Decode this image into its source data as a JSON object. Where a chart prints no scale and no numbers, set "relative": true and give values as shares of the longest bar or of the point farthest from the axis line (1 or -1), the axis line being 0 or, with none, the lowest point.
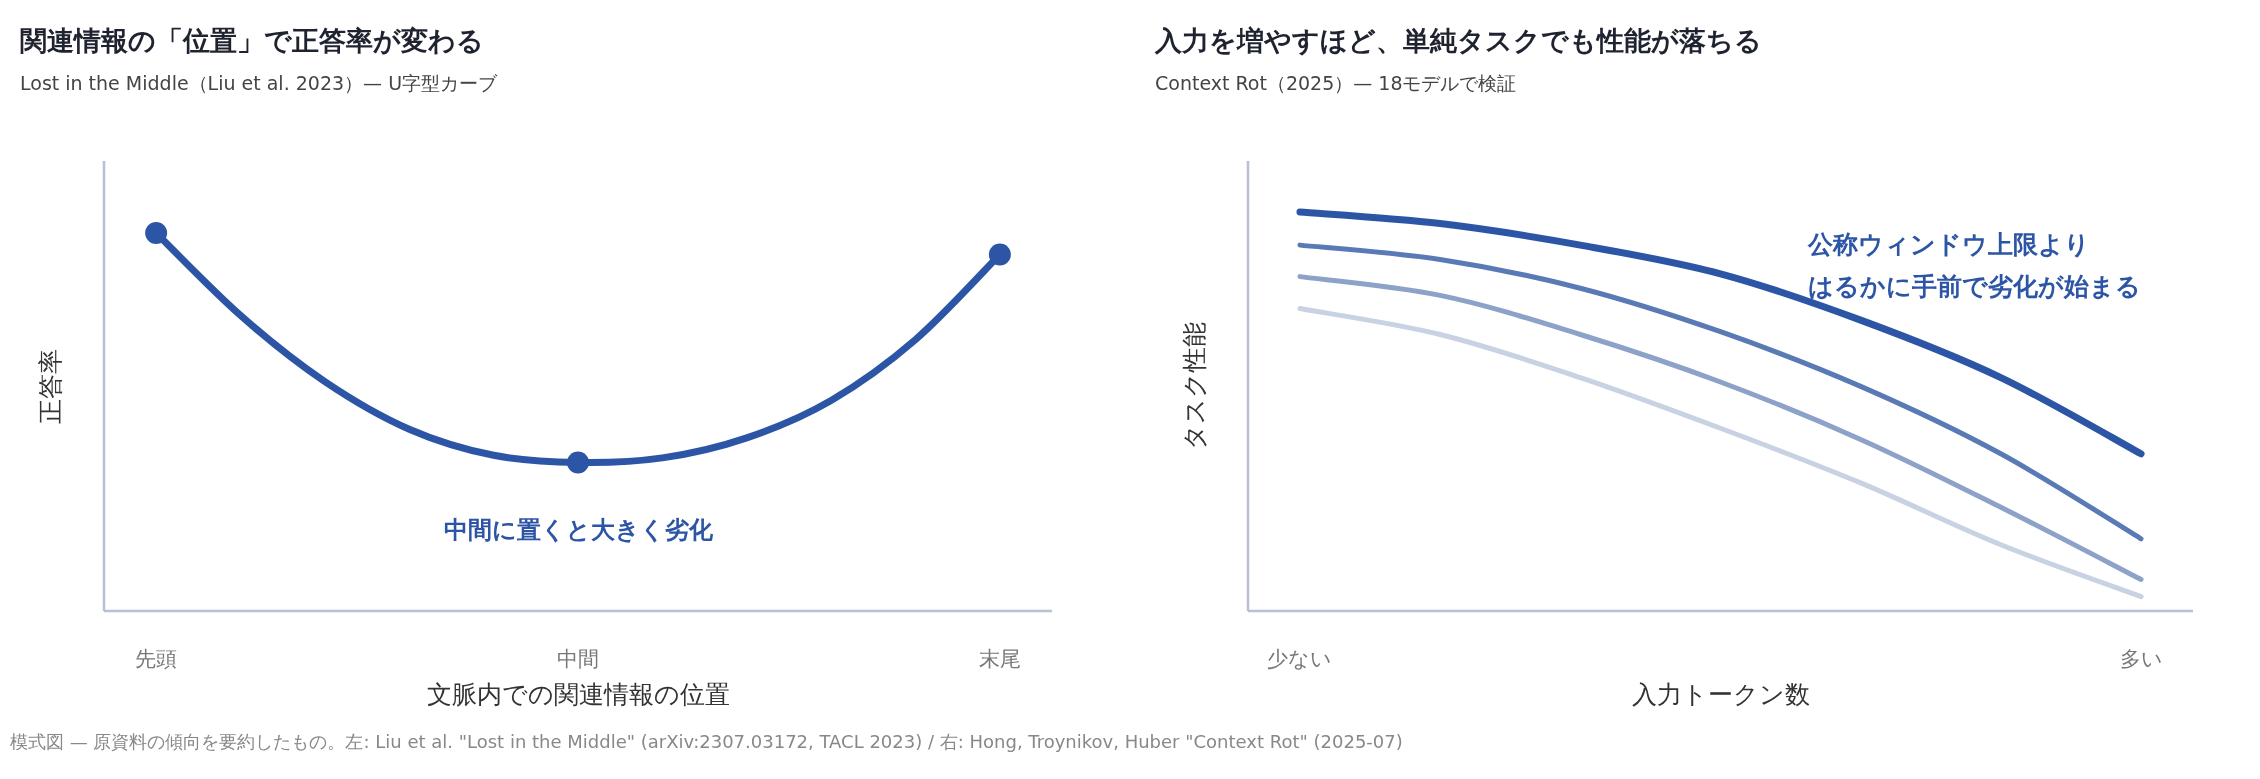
{
  "chart_data": [
    {
      "type": "line",
      "relative": true,
      "title": "関連情報の「位置」で正答率が変わる",
      "subtitle": "Lost in the Middle（Liu et al. 2023）— U字型カーブ",
      "xlabel": "文脈内での関連情報の位置",
      "ylabel": "正答率",
      "categories": [
        "先頭",
        null,
        null,
        null,
        null,
        "中間",
        null,
        null,
        null,
        null,
        "末尾"
      ],
      "series": [
        {
          "type": "line",
          "color": "#2d55a5",
          "values": [
            1,
            0.782,
            0.607,
            0.481,
            0.412,
            0.393,
            0.405,
            0.458,
            0.557,
            0.718,
            0.943
          ]
        },
        {
          "type": "scatter",
          "marker": "circle",
          "color": "#2d55a5",
          "values": [
            1,
            null,
            null,
            null,
            null,
            0.393,
            null,
            null,
            null,
            null,
            0.943
          ]
        }
      ],
      "annotations": [
        "中間に置くと大きく劣化",
        "模式図 — 原資料の傾向を要約したもの。左: Liu et al. \"Lost in the Middle\" (arXiv:2307.03172, TACL 2023) / 右: Hong, Troynikov, Huber \"Context Rot\" (2025-07)"
      ]
    },
    {
      "type": "line",
      "relative": true,
      "title": "入力を増やすほど、単純タスクでも性能が落ちる",
      "subtitle": "Context Rot（2025）— 18モデルで検証",
      "xlabel": "入力トークン数",
      "ylabel": "タスク性能",
      "categories": [
        "少ない",
        null,
        null,
        null,
        null,
        null,
        "多い"
      ],
      "series": [
        {
          "color": "#2d55a5",
          "values": [
            1,
            0.971,
            0.917,
            0.845,
            0.729,
            0.585,
            0.394
          ]
        },
        {
          "color": "#5a7ab5",
          "values": [
            0.917,
            0.881,
            0.809,
            0.7,
            0.563,
            0.394,
            0.181
          ]
        },
        {
          "color": "#8ca2c8",
          "values": [
            0.838,
            0.791,
            0.693,
            0.574,
            0.43,
            0.26,
            0.079
          ]
        },
        {
          "color": "#c8d2e2",
          "values": [
            0.758,
            0.693,
            0.585,
            0.458,
            0.321,
            0.166,
            0.036
          ]
        }
      ],
      "annotations": [
        "公称ウィンドウ上限より",
        "はるかに手前で劣化が始まる"
      ]
    }
  ]
}
